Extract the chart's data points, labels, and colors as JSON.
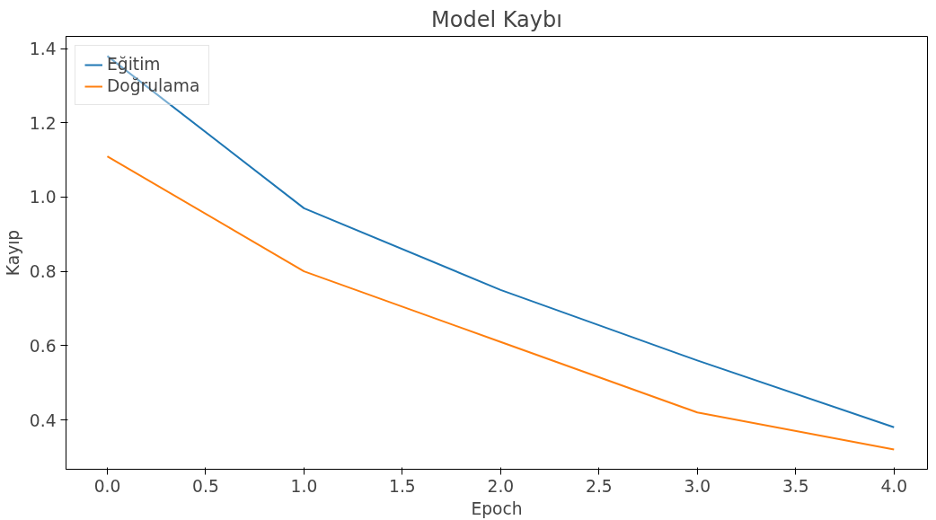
{
  "chart_data": {
    "type": "line",
    "title": "Model Kaybı",
    "xlabel": "Epoch",
    "ylabel": "Kayıp",
    "x": [
      0,
      1,
      2,
      3,
      4
    ],
    "series": [
      {
        "name": "Eğitim",
        "color": "#1f77b4",
        "values": [
          1.38,
          0.97,
          0.75,
          0.56,
          0.38
        ]
      },
      {
        "name": "Doğrulama",
        "color": "#ff7f0e",
        "values": [
          1.11,
          0.8,
          0.61,
          0.42,
          0.32
        ]
      }
    ],
    "xlim": [
      -0.21,
      4.17
    ],
    "ylim": [
      0.267,
      1.433
    ],
    "xticks": [
      {
        "value": 0,
        "label": "0.0"
      },
      0.5,
      {
        "value": 1,
        "label": "1.0"
      },
      1.5,
      {
        "value": 2,
        "label": "2.0"
      },
      2.5,
      {
        "value": 3,
        "label": "3.0"
      },
      3.5,
      {
        "value": 4,
        "label": "4.0"
      }
    ],
    "yticks": [
      0.4,
      0.6,
      0.8,
      {
        "value": 1,
        "label": "1.0"
      },
      1.2,
      1.4
    ],
    "grid": false,
    "legend": "top left",
    "marker": "none",
    "line_style": "solid"
  }
}
